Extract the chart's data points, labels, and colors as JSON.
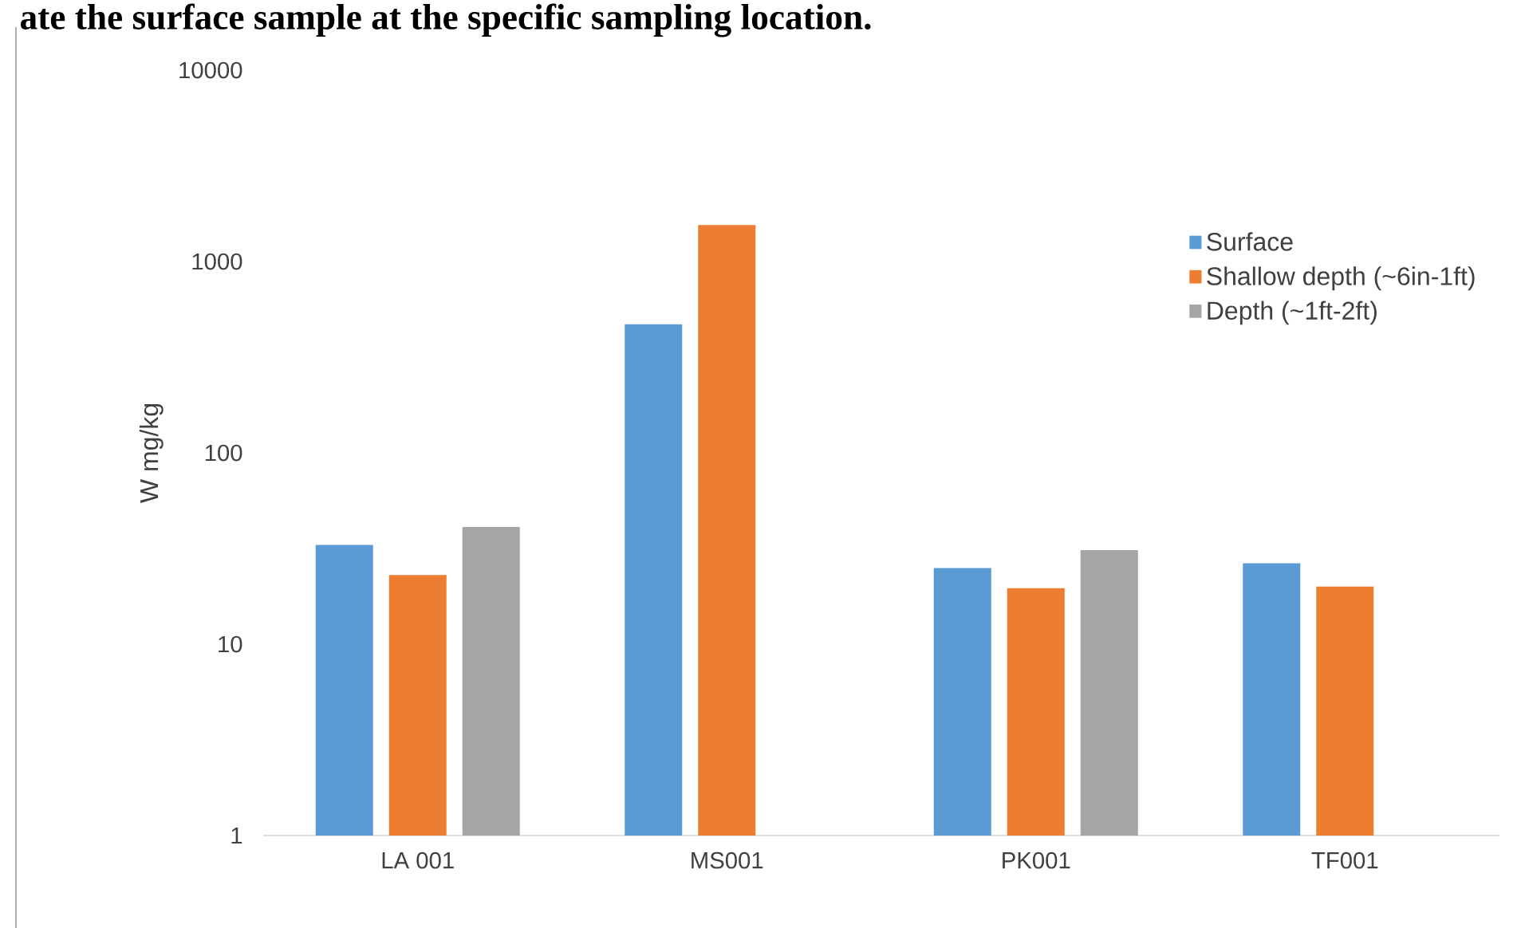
{
  "chart_data": {
    "type": "bar",
    "title": "ate the surface sample at the specific sampling location.",
    "ylabel": "W mg/kg",
    "categories": [
      "LA 001",
      "MS001",
      "PK001",
      "TF001"
    ],
    "series": [
      {
        "name": "Surface",
        "color": "#5b9bd5",
        "values": [
          33,
          470,
          25,
          26.5
        ]
      },
      {
        "name": "Shallow depth (~6in-1ft)",
        "color": "#ed7d31",
        "values": [
          23,
          1550,
          19.6,
          20
        ]
      },
      {
        "name": "Depth (~1ft-2ft)",
        "color": "#a5a5a5",
        "values": [
          41,
          null,
          31,
          null
        ]
      }
    ],
    "log": "y",
    "ylim": [
      1,
      10000
    ],
    "yticks": [
      1,
      10,
      100,
      1000,
      10000
    ],
    "grid": false,
    "legend": "top right"
  }
}
